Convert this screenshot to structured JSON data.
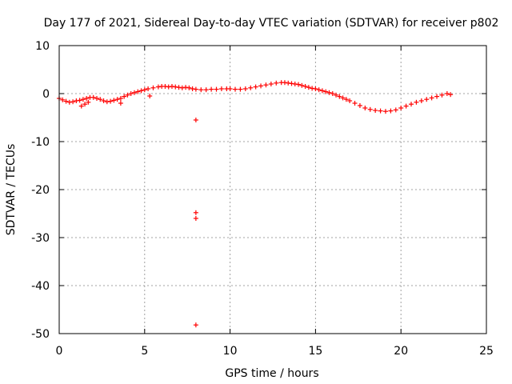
{
  "chart_data": {
    "type": "scatter",
    "title": "Day 177 of 2021, Sidereal Day-to-day VTEC variation (SDTVAR) for receiver p802",
    "xlabel": "GPS time / hours",
    "ylabel": "SDTVAR / TECUs",
    "xlim": [
      0,
      25
    ],
    "ylim": [
      -50,
      10
    ],
    "xticks": [
      0,
      5,
      10,
      15,
      20,
      25
    ],
    "yticks": [
      10,
      0,
      -10,
      -20,
      -30,
      -40,
      -50
    ],
    "xtick_labels": [
      "0",
      "5",
      "10",
      "15",
      "20",
      "25"
    ],
    "ytick_labels": [
      "10",
      "0",
      "-10",
      "-20",
      "-30",
      "-40",
      "-50"
    ],
    "grid": true,
    "marker": "+",
    "color": "#ff0000",
    "series": [
      {
        "name": "SDTVAR",
        "x": [
          0.0,
          0.2,
          0.4,
          0.6,
          0.8,
          1.0,
          1.2,
          1.4,
          1.6,
          1.8,
          2.0,
          2.2,
          2.4,
          2.6,
          2.8,
          3.0,
          3.2,
          3.4,
          3.6,
          3.8,
          4.0,
          4.2,
          4.4,
          4.6,
          4.8,
          5.0,
          5.2,
          5.5,
          5.8,
          6.0,
          6.2,
          6.4,
          6.6,
          6.8,
          7.0,
          7.2,
          7.4,
          7.6,
          7.8,
          8.0,
          8.3,
          8.6,
          8.9,
          9.2,
          9.5,
          9.8,
          10.0,
          10.3,
          10.6,
          10.9,
          11.2,
          11.5,
          11.8,
          12.1,
          12.4,
          12.7,
          13.0,
          13.2,
          13.4,
          13.6,
          13.8,
          14.0,
          14.2,
          14.4,
          14.6,
          14.8,
          15.0,
          15.2,
          15.4,
          15.6,
          15.8,
          16.0,
          16.2,
          16.4,
          16.6,
          16.8,
          17.0,
          17.3,
          17.6,
          17.9,
          18.2,
          18.5,
          18.8,
          19.1,
          19.4,
          19.7,
          20.0,
          20.3,
          20.6,
          20.9,
          21.2,
          21.5,
          21.8,
          22.1,
          22.4,
          22.7,
          22.9,
          1.3,
          1.5,
          1.7,
          3.6,
          5.3,
          8.0,
          8.0,
          8.0,
          8.0
        ],
        "y": [
          -1.0,
          -1.3,
          -1.6,
          -1.8,
          -1.7,
          -1.5,
          -1.4,
          -1.2,
          -1.0,
          -0.8,
          -0.8,
          -1.0,
          -1.2,
          -1.5,
          -1.7,
          -1.6,
          -1.4,
          -1.2,
          -1.0,
          -0.6,
          -0.3,
          0.0,
          0.2,
          0.4,
          0.6,
          0.8,
          1.0,
          1.2,
          1.4,
          1.5,
          1.5,
          1.4,
          1.5,
          1.4,
          1.3,
          1.2,
          1.3,
          1.2,
          1.0,
          0.9,
          0.8,
          0.8,
          0.9,
          0.9,
          1.0,
          1.0,
          1.0,
          0.9,
          0.9,
          1.0,
          1.2,
          1.4,
          1.6,
          1.8,
          2.0,
          2.2,
          2.3,
          2.3,
          2.2,
          2.1,
          2.0,
          1.9,
          1.7,
          1.5,
          1.3,
          1.1,
          1.0,
          0.8,
          0.6,
          0.4,
          0.2,
          0.0,
          -0.3,
          -0.6,
          -0.9,
          -1.2,
          -1.5,
          -2.0,
          -2.5,
          -3.0,
          -3.3,
          -3.5,
          -3.6,
          -3.7,
          -3.6,
          -3.4,
          -3.0,
          -2.6,
          -2.2,
          -1.8,
          -1.5,
          -1.2,
          -0.9,
          -0.6,
          -0.3,
          0.0,
          -0.2,
          -2.6,
          -2.2,
          -1.8,
          -2.0,
          -0.5,
          -5.5,
          -24.8,
          -26.0,
          -48.2
        ]
      }
    ]
  }
}
